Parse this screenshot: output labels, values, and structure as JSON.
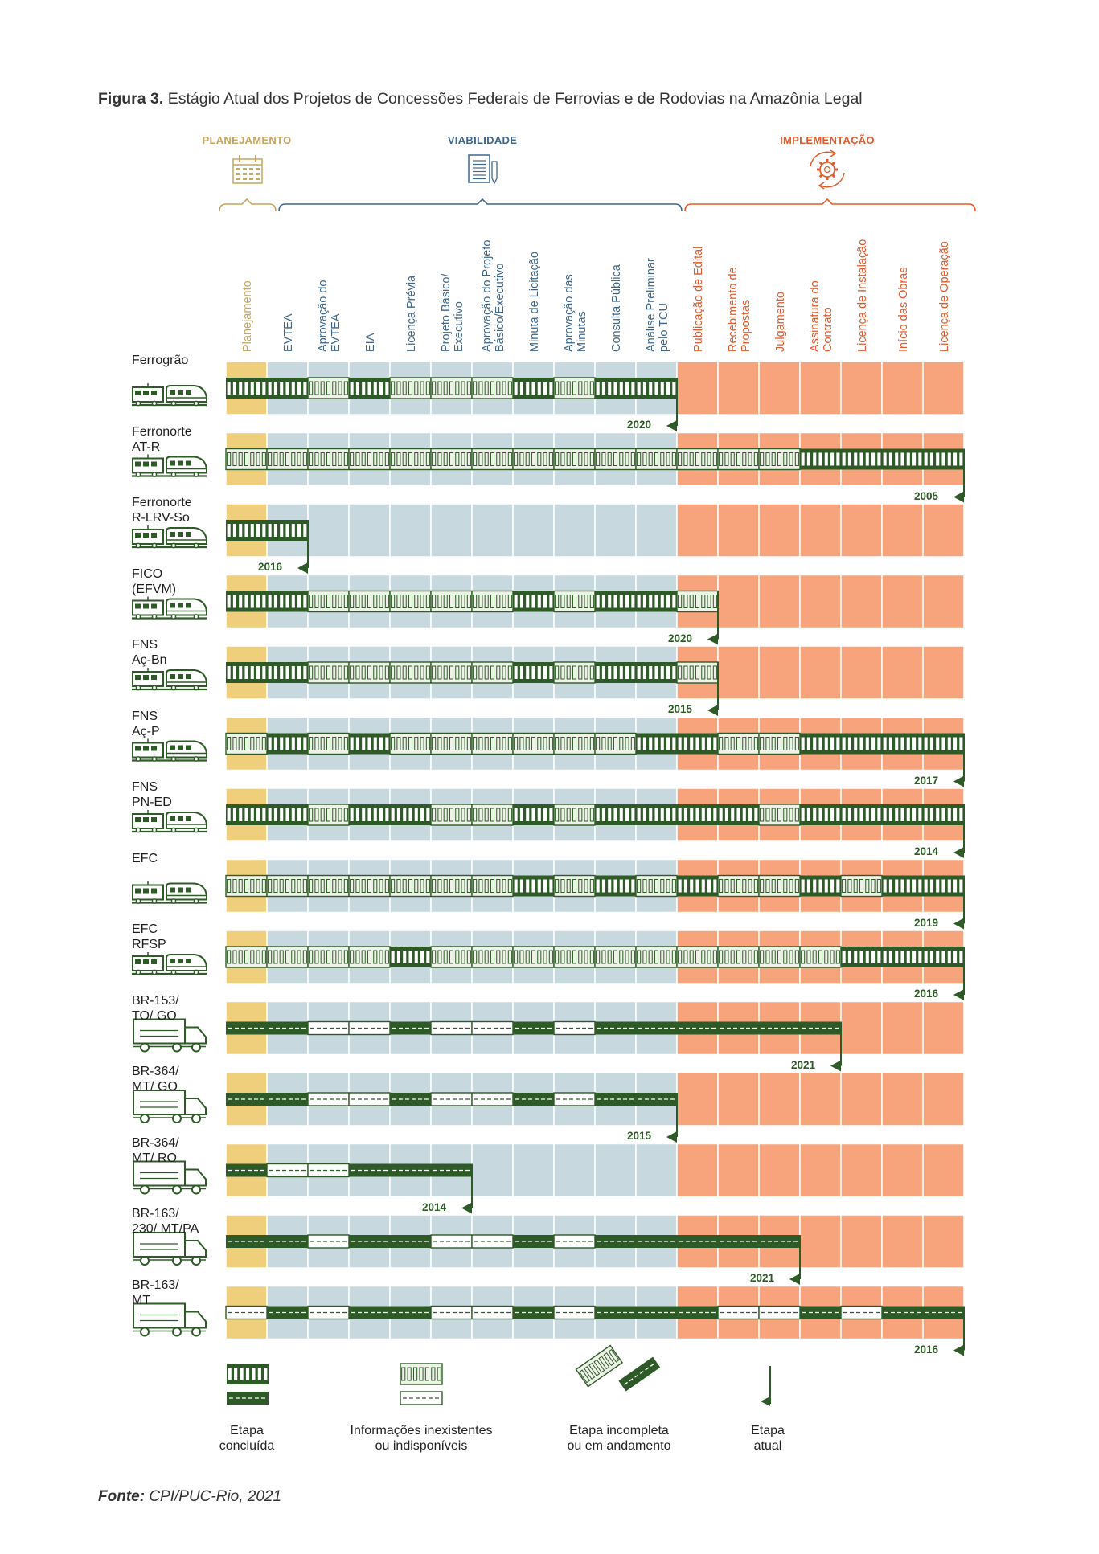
{
  "caption": {
    "label": "Figura 3.",
    "text": "Estágio Atual dos Projetos de Concessões Federais de Ferrovias e de Rodovias na Amazônia Legal"
  },
  "phases": [
    {
      "label": "PLANEJAMENTO",
      "color": "#c6a55f",
      "icon": "calendar-icon"
    },
    {
      "label": "VIABILIDADE",
      "color": "#3f6688",
      "icon": "document-pen-icon"
    },
    {
      "label": "IMPLEMENTAÇÃO",
      "color": "#e05a2b",
      "icon": "gear-cycle-icon"
    }
  ],
  "columns": [
    {
      "lines": [
        "Planejamento"
      ],
      "phase": 0
    },
    {
      "lines": [
        "EVTEA"
      ],
      "phase": 1
    },
    {
      "lines": [
        "Aprovação do",
        "EVTEA"
      ],
      "phase": 1
    },
    {
      "lines": [
        "EIA"
      ],
      "phase": 1
    },
    {
      "lines": [
        "Licença Prévia"
      ],
      "phase": 1
    },
    {
      "lines": [
        "Projeto Básico/",
        "Executivo"
      ],
      "phase": 1
    },
    {
      "lines": [
        "Aprovação do Projeto",
        "Básico/Executivo"
      ],
      "phase": 1
    },
    {
      "lines": [
        "Minuta de Licitação"
      ],
      "phase": 1
    },
    {
      "lines": [
        "Aprovação das",
        "Minutas"
      ],
      "phase": 1
    },
    {
      "lines": [
        "Consulta Pública"
      ],
      "phase": 1
    },
    {
      "lines": [
        "Análise Preliminar",
        "pelo TCU"
      ],
      "phase": 1
    },
    {
      "lines": [
        "Publicação de Edital"
      ],
      "phase": 2
    },
    {
      "lines": [
        "Recebimento de",
        "Propostas"
      ],
      "phase": 2
    },
    {
      "lines": [
        "Julgamento"
      ],
      "phase": 2
    },
    {
      "lines": [
        "Assinatura do",
        "Contrato"
      ],
      "phase": 2
    },
    {
      "lines": [
        "Licença de Instalação"
      ],
      "phase": 2
    },
    {
      "lines": [
        "Início das Obras"
      ],
      "phase": 2
    },
    {
      "lines": [
        "Licença de Operação"
      ],
      "phase": 2
    }
  ],
  "status_legend": {
    "C": "Etapa concluída",
    "N": "Informações inexistentes ou indisponíveis",
    "I": "Etapa incompleta ou em andamento"
  },
  "projects": [
    {
      "name": [
        "Ferrogrão"
      ],
      "mode": "rail",
      "status": "CCNCNNNCNCC",
      "year": "2020"
    },
    {
      "name": [
        "Ferronorte",
        "AT-R"
      ],
      "mode": "rail",
      "status": "NNNNNNNNNNNNNNCCCC",
      "year": "2005"
    },
    {
      "name": [
        "Ferronorte",
        "R-LRV-So"
      ],
      "mode": "rail",
      "status": "CC",
      "year": "2016"
    },
    {
      "name": [
        "FICO",
        "(EFVM)"
      ],
      "mode": "rail",
      "status": "CCNNNNNCNCCI",
      "year": "2020"
    },
    {
      "name": [
        "FNS",
        "Aç-Bn"
      ],
      "mode": "rail",
      "status": "CCNNNNNCNCCI",
      "year": "2015"
    },
    {
      "name": [
        "FNS",
        "Aç-P"
      ],
      "mode": "rail",
      "status": "NCNCNNNNNNCCNNCCCC",
      "year": "2017"
    },
    {
      "name": [
        "FNS",
        "PN-ED"
      ],
      "mode": "rail",
      "status": "CCNCCNNCNCCCCNCCCC",
      "year": "2014"
    },
    {
      "name": [
        "EFC"
      ],
      "mode": "rail",
      "status": "NNNNNNNCNCNCNNCNCC",
      "year": "2019"
    },
    {
      "name": [
        "EFC",
        "RFSP"
      ],
      "mode": "rail",
      "status": "NNNNCNNNNNNNNNNCCC",
      "year": "2016"
    },
    {
      "name": [
        "BR-153/",
        "TO/ GO"
      ],
      "mode": "road",
      "status": "CCNNCNNCNCCCCCI",
      "year": "2021"
    },
    {
      "name": [
        "BR-364/",
        "MT/ GO"
      ],
      "mode": "road",
      "status": "CCNNCNNCNCI",
      "year": "2015"
    },
    {
      "name": [
        "BR-364/",
        "MT/ RO"
      ],
      "mode": "road",
      "status": "CNNCCI",
      "year": "2014"
    },
    {
      "name": [
        "BR-163/",
        "230/ MT/PA"
      ],
      "mode": "road",
      "status": "CCNCCNNCNCCCCI",
      "year": "2021"
    },
    {
      "name": [
        "BR-163/",
        "MT"
      ],
      "mode": "road",
      "status": "NCNCCNNCNCCCNNCNCC",
      "year": "2016"
    }
  ],
  "legend": [
    {
      "lines": [
        "Etapa",
        "concluída"
      ]
    },
    {
      "lines": [
        "Informações inexistentes",
        "ou indisponíveis"
      ]
    },
    {
      "lines": [
        "Etapa incompleta",
        "ou em andamento"
      ]
    },
    {
      "lines": [
        "Etapa",
        "atual"
      ]
    }
  ],
  "colors": {
    "dark_green": "#2e5a27",
    "pale_green": "#eef2e8",
    "planning_band": "#f0cf7c",
    "viability_band": "#c7d8df",
    "implementation_band": "#f7a47c"
  },
  "source": {
    "label": "Fonte:",
    "text": "CPI/PUC-Rio, 2021"
  }
}
